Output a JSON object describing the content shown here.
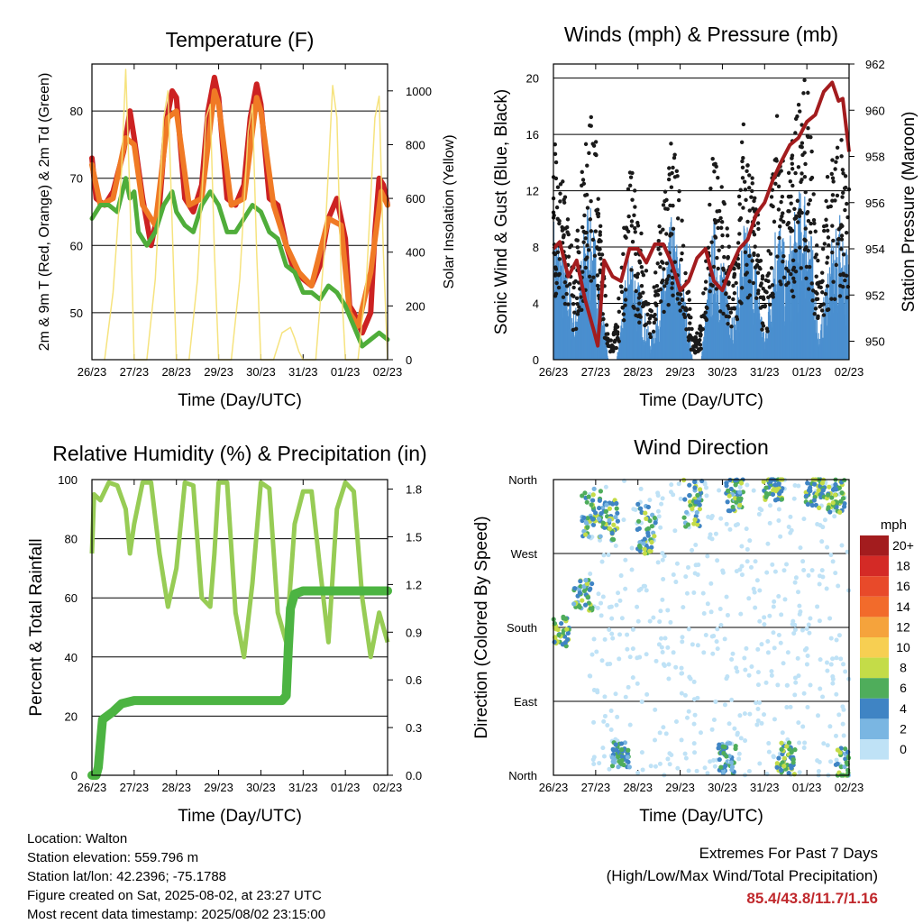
{
  "chart_data": [
    {
      "type": "line",
      "title": "Temperature (F)",
      "xlabel": "Time (Day/UTC)",
      "ylabel": "2m & 9m T (Red, Orange) & 2m Td (Green)",
      "ylabel_right": "Solar Insolation (Yellow)",
      "x_ticks": [
        "26/23",
        "27/23",
        "28/23",
        "29/23",
        "30/23",
        "31/23",
        "01/23",
        "02/23"
      ],
      "y_ticks": [
        "50",
        "60",
        "70",
        "80"
      ],
      "y2_ticks": [
        "0",
        "200",
        "400",
        "600",
        "800",
        "1000"
      ],
      "ylim": [
        43,
        87
      ],
      "y2lim": [
        0,
        1100
      ],
      "series": [
        {
          "color": "#cc2222",
          "x": [
            0,
            0.1,
            0.3,
            0.5,
            0.75,
            0.9,
            1.0,
            1.2,
            1.4,
            1.6,
            1.75,
            1.9,
            2.0,
            2.2,
            2.4,
            2.6,
            2.75,
            2.9,
            3.0,
            3.2,
            3.4,
            3.6,
            3.75,
            3.9,
            4.0,
            4.2,
            4.4,
            4.6,
            4.75,
            4.9,
            5.0,
            5.2,
            5.4,
            5.6,
            5.8,
            6.0,
            6.1,
            6.2,
            6.4,
            6.6,
            6.7,
            6.8,
            6.9,
            7.0
          ],
          "values": [
            73,
            67,
            66,
            68,
            74,
            80,
            76,
            67,
            60,
            66,
            78,
            83,
            82,
            67,
            65,
            69,
            80,
            85,
            82,
            67,
            66,
            69,
            79,
            84,
            81,
            67,
            66,
            60,
            57,
            56,
            55,
            54,
            57,
            64,
            67,
            61,
            51,
            50,
            47,
            50,
            62,
            70,
            69,
            66
          ]
        },
        {
          "color": "#f07a25",
          "x": [
            0,
            0.2,
            0.5,
            0.8,
            1.0,
            1.2,
            1.5,
            1.8,
            2.0,
            2.3,
            2.6,
            2.9,
            3.0,
            3.3,
            3.6,
            3.9,
            4.0,
            4.3,
            4.6,
            4.9,
            5.2,
            5.6,
            5.9,
            6.1,
            6.3,
            6.6,
            6.85,
            7.0
          ],
          "values": [
            72,
            66,
            67,
            76,
            75,
            66,
            63,
            79,
            80,
            66,
            67,
            83,
            81,
            66,
            67,
            82,
            80,
            66,
            60,
            56,
            54,
            64,
            63,
            50,
            48,
            56,
            68,
            66
          ]
        },
        {
          "color": "#4fad3a",
          "x": [
            0,
            0.2,
            0.4,
            0.6,
            0.8,
            0.9,
            1.0,
            1.1,
            1.3,
            1.5,
            1.7,
            1.9,
            2.0,
            2.2,
            2.4,
            2.6,
            2.8,
            3.0,
            3.2,
            3.4,
            3.6,
            3.8,
            4.0,
            4.2,
            4.4,
            4.6,
            4.8,
            5.0,
            5.2,
            5.4,
            5.6,
            5.8,
            6.0,
            6.2,
            6.4,
            6.6,
            6.8,
            7.0
          ],
          "values": [
            64,
            66,
            66,
            65,
            70,
            67,
            68,
            62,
            60,
            62,
            66,
            68,
            65,
            63,
            62,
            66,
            68,
            66,
            62,
            62,
            64,
            66,
            65,
            62,
            61,
            57,
            56,
            53,
            53,
            52,
            54,
            53,
            51,
            48,
            45,
            46,
            47,
            46
          ]
        },
        {
          "color": "#f5e070",
          "x": [
            0.3,
            0.5,
            0.7,
            0.8,
            0.9,
            1.0,
            1.3,
            1.5,
            1.7,
            1.8,
            1.9,
            2.0,
            2.3,
            2.5,
            2.7,
            2.8,
            2.9,
            3.0,
            3.3,
            3.5,
            3.7,
            3.8,
            3.9,
            4.0,
            4.3,
            4.5,
            4.7,
            4.8,
            4.9,
            5.0,
            5.3,
            5.5,
            5.7,
            5.8,
            5.9,
            6.0,
            6.3,
            6.5,
            6.7,
            6.8,
            6.9,
            7.0
          ],
          "values": [
            0,
            250,
            700,
            1080,
            600,
            0,
            0,
            300,
            900,
            1000,
            500,
            0,
            0,
            300,
            900,
            950,
            400,
            0,
            0,
            300,
            850,
            950,
            400,
            0,
            0,
            100,
            120,
            80,
            30,
            0,
            0,
            400,
            1020,
            900,
            300,
            0,
            0,
            300,
            900,
            980,
            400,
            0
          ]
        }
      ]
    },
    {
      "type": "line",
      "title": "Winds (mph) & Pressure (mb)",
      "xlabel": "Time (Day/UTC)",
      "ylabel": "Sonic Wind & Gust (Blue, Black)",
      "ylabel_right": "Station Pressure (Maroon)",
      "x_ticks": [
        "26/23",
        "27/23",
        "28/23",
        "29/23",
        "30/23",
        "31/23",
        "01/23",
        "02/23"
      ],
      "y_ticks": [
        "0",
        "4",
        "8",
        "12",
        "16",
        "20"
      ],
      "y2_ticks": [
        "950",
        "952",
        "954",
        "956",
        "958",
        "960",
        "962"
      ],
      "ylim": [
        0,
        21
      ],
      "y2lim": [
        949.2,
        962
      ],
      "series": [
        {
          "color": "#1a1a1a",
          "x": [
            0,
            0.3,
            0.5,
            0.8,
            1.0,
            1.3,
            1.5,
            1.8,
            2.0,
            2.3,
            2.5,
            2.8,
            3.0,
            3.3,
            3.5,
            3.8,
            4.0,
            4.3,
            4.5,
            4.8,
            5.0,
            5.3,
            5.5,
            5.8,
            6.0,
            6.3,
            6.5,
            6.8,
            7.0
          ],
          "values": [
            12,
            9,
            5,
            14,
            12,
            1,
            2,
            11,
            8,
            3,
            7,
            12,
            9,
            1,
            2,
            12,
            9,
            5,
            13,
            9,
            3,
            15,
            9,
            14,
            16,
            4,
            10,
            12,
            9
          ]
        },
        {
          "color": "#4a8fcf",
          "x": [
            0,
            0.3,
            0.5,
            0.8,
            1.0,
            1.3,
            1.5,
            1.8,
            2.0,
            2.3,
            2.5,
            2.8,
            3.0,
            3.3,
            3.5,
            3.8,
            4.0,
            4.3,
            4.5,
            4.8,
            5.0,
            5.3,
            5.5,
            5.8,
            6.0,
            6.3,
            6.5,
            6.8,
            7.0
          ],
          "values": [
            7,
            5,
            2,
            8,
            6,
            0,
            0,
            6,
            4,
            1,
            3,
            7,
            5,
            0,
            0,
            7,
            5,
            2,
            7,
            5,
            1,
            8,
            5,
            8,
            9,
            1,
            5,
            7,
            5
          ]
        },
        {
          "color": "#a31c1e",
          "x": [
            0,
            0.15,
            0.35,
            0.55,
            0.75,
            0.95,
            1.05,
            1.2,
            1.4,
            1.6,
            1.8,
            2.0,
            2.2,
            2.4,
            2.6,
            2.8,
            3.0,
            3.2,
            3.4,
            3.6,
            3.8,
            4.0,
            4.2,
            4.4,
            4.6,
            4.8,
            5.0,
            5.2,
            5.4,
            5.6,
            5.8,
            6.0,
            6.2,
            6.4,
            6.6,
            6.75,
            6.85,
            7.0
          ],
          "values": [
            954.0,
            954.3,
            952.8,
            953.5,
            951.8,
            950.5,
            949.8,
            953.5,
            952.8,
            952.6,
            954.0,
            954.0,
            953.4,
            954.2,
            954.2,
            953.4,
            952.2,
            952.6,
            953.6,
            954.0,
            952.6,
            952.2,
            953.2,
            954.0,
            954.4,
            955.5,
            956.0,
            957.0,
            957.8,
            958.5,
            958.8,
            959.5,
            959.8,
            960.8,
            961.2,
            960.4,
            960.5,
            958.2
          ]
        }
      ]
    },
    {
      "type": "line",
      "title": "Relative Humidity (%) & Precipitation (in)",
      "xlabel": "Time (Day/UTC)",
      "ylabel": "Percent & Total Rainfall",
      "x_ticks": [
        "26/23",
        "27/23",
        "28/23",
        "29/23",
        "30/23",
        "31/23",
        "01/23",
        "02/23"
      ],
      "y_ticks": [
        "0",
        "20",
        "40",
        "60",
        "80",
        "100"
      ],
      "y2_ticks": [
        "0.0",
        "0.3",
        "0.6",
        "0.9",
        "1.2",
        "1.5",
        "1.8"
      ],
      "ylim": [
        0,
        100
      ],
      "y2lim": [
        0,
        1.86
      ],
      "series": [
        {
          "color": "#97cc55",
          "x": [
            0,
            0.05,
            0.2,
            0.4,
            0.6,
            0.8,
            0.9,
            1.0,
            1.2,
            1.4,
            1.6,
            1.8,
            2.0,
            2.2,
            2.4,
            2.6,
            2.8,
            2.9,
            3.0,
            3.2,
            3.4,
            3.6,
            3.8,
            4.0,
            4.2,
            4.4,
            4.6,
            4.8,
            5.0,
            5.2,
            5.4,
            5.6,
            5.8,
            6.0,
            6.2,
            6.4,
            6.6,
            6.8,
            7.0
          ],
          "values": [
            75,
            95,
            93,
            99,
            98,
            90,
            75,
            85,
            99,
            99,
            75,
            57,
            70,
            99,
            98,
            60,
            57,
            75,
            99,
            99,
            55,
            40,
            65,
            99,
            97,
            55,
            45,
            85,
            96,
            96,
            70,
            45,
            90,
            99,
            96,
            60,
            40,
            55,
            45
          ]
        },
        {
          "color": "#4cb442",
          "x": [
            0,
            0.1,
            0.15,
            0.2,
            0.25,
            0.5,
            0.7,
            1.0,
            2.0,
            3.0,
            4.0,
            4.5,
            4.6,
            4.65,
            4.7,
            4.8,
            5.0,
            5.5,
            6.0,
            6.5,
            7.0
          ],
          "values": [
            0,
            0,
            0.05,
            0.2,
            0.35,
            0.4,
            0.45,
            0.47,
            0.47,
            0.47,
            0.47,
            0.47,
            0.5,
            0.8,
            1.05,
            1.14,
            1.16,
            1.16,
            1.16,
            1.16,
            1.16
          ]
        }
      ]
    },
    {
      "type": "scatter",
      "title": "Wind Direction",
      "xlabel": "Time (Day/UTC)",
      "ylabel": "Direction (Colored By Speed)",
      "x_ticks": [
        "26/23",
        "27/23",
        "28/23",
        "29/23",
        "30/23",
        "31/23",
        "01/23",
        "02/23"
      ],
      "y_ticks": [
        "North",
        "East",
        "South",
        "West",
        "North"
      ],
      "ylim": [
        0,
        360
      ],
      "legend_title": "mph",
      "legend_labels": [
        "20+",
        "18",
        "16",
        "14",
        "12",
        "10",
        "8",
        "6",
        "4",
        "2",
        "0"
      ],
      "legend_colors": [
        "#a31c1e",
        "#d42a26",
        "#e84a2a",
        "#f26b2b",
        "#f5a33c",
        "#f7cf52",
        "#c4dc48",
        "#4fad5b",
        "#3f84c4",
        "#7ab6e2",
        "#bfe2f6"
      ],
      "legend_position": "right",
      "clusters": [
        {
          "x": 0.15,
          "dir": 175,
          "spread": 20,
          "speed": 6
        },
        {
          "x": 0.7,
          "dir": 220,
          "spread": 20,
          "speed": 5
        },
        {
          "x": 0.9,
          "dir": 320,
          "spread": 30,
          "speed": 5
        },
        {
          "x": 1.3,
          "dir": 310,
          "spread": 25,
          "speed": 5
        },
        {
          "x": 2.2,
          "dir": 300,
          "spread": 30,
          "speed": 5
        },
        {
          "x": 3.3,
          "dir": 330,
          "spread": 30,
          "speed": 5
        },
        {
          "x": 4.3,
          "dir": 340,
          "spread": 20,
          "speed": 5
        },
        {
          "x": 5.2,
          "dir": 350,
          "spread": 15,
          "speed": 6
        },
        {
          "x": 6.2,
          "dir": 345,
          "spread": 20,
          "speed": 6
        },
        {
          "x": 6.7,
          "dir": 340,
          "spread": 20,
          "speed": 6
        },
        {
          "x": 1.6,
          "dir": 25,
          "spread": 15,
          "speed": 4
        },
        {
          "x": 5.5,
          "dir": 20,
          "spread": 20,
          "speed": 6
        },
        {
          "x": 6.9,
          "dir": 15,
          "spread": 20,
          "speed": 5
        },
        {
          "x": 4.1,
          "dir": 20,
          "spread": 20,
          "speed": 3
        }
      ]
    }
  ],
  "info": {
    "location": "Location: Walton",
    "elevation": "Station elevation: 559.796 m",
    "latlon": "Station lat/lon: 42.2396; -75.1788",
    "created": "Figure created on Sat, 2025-08-02, at 23:27 UTC",
    "recent": "Most recent data timestamp: 2025/08/02 23:15:00"
  },
  "extremes": {
    "line1": "Extremes For Past 7 Days",
    "line2": "(High/Low/Max Wind/Total Precipitation)",
    "values": "85.4/43.8/11.7/1.16"
  }
}
